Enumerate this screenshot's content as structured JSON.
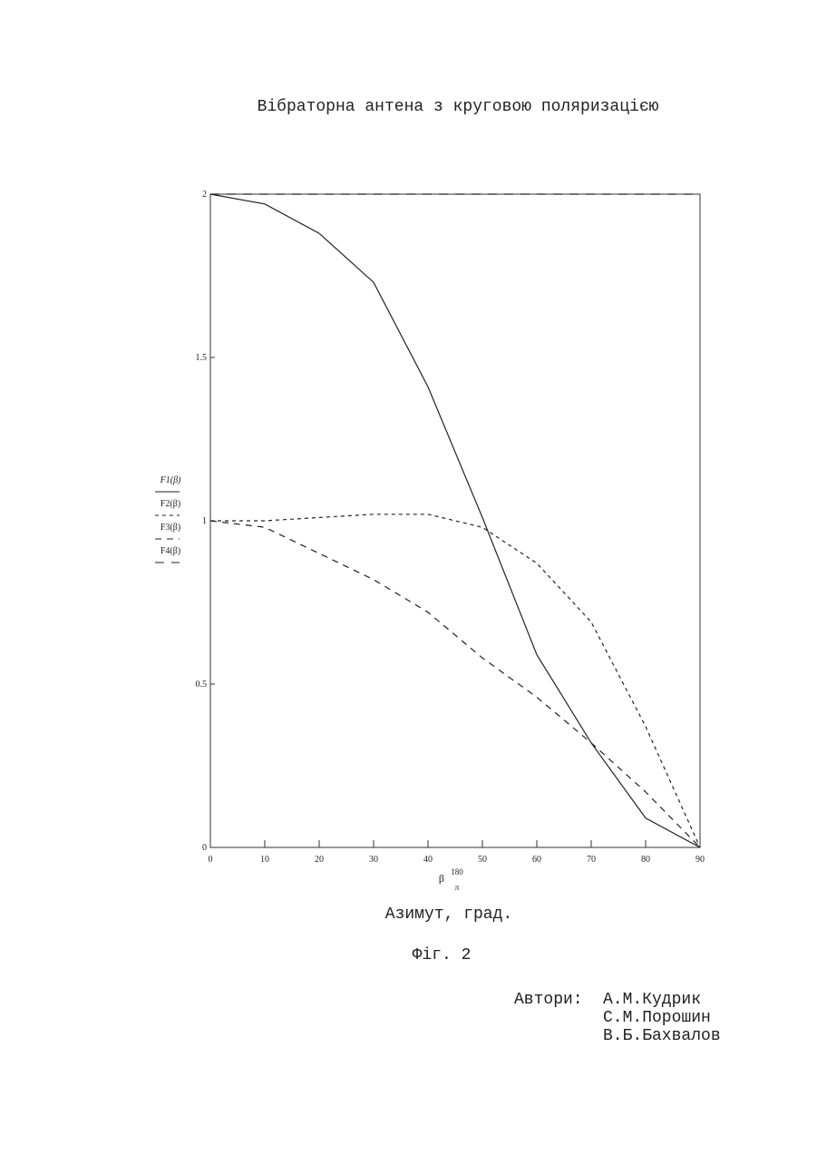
{
  "document": {
    "title": "Вібраторна антена з круговою поляризацією",
    "caption": "Фіг. 2",
    "authors_label": "Автори:",
    "authors": [
      "А.М.Кудрик",
      "С.М.Порошин",
      "В.Б.Бахвалов"
    ]
  },
  "chart_data": {
    "type": "line",
    "xlabel": "Азимут, град.",
    "x_symbol": "β",
    "x_factor_numerator": "180",
    "x_factor_denominator": "π",
    "x": [
      0,
      10,
      20,
      30,
      40,
      50,
      60,
      70,
      80,
      90
    ],
    "series": [
      {
        "name": "F1(β)",
        "color": "#222222",
        "dash": "none",
        "values": [
          2,
          1.97,
          1.88,
          1.73,
          1.41,
          1.01,
          0.59,
          0.32,
          0.09,
          0
        ]
      },
      {
        "name": "F2(β)",
        "color": "#222222",
        "dash": "4 4",
        "values": [
          1,
          1,
          1.01,
          1.02,
          1.02,
          0.98,
          0.87,
          0.69,
          0.37,
          0
        ]
      },
      {
        "name": "F3(β)",
        "color": "#222222",
        "dash": "7 6",
        "values": [
          1,
          0.98,
          0.9,
          0.82,
          0.72,
          0.58,
          0.46,
          0.32,
          0.17,
          0
        ]
      },
      {
        "name": "F4(β)",
        "color": "#222222",
        "dash": "10 8",
        "values": [
          2,
          2,
          2,
          2,
          2,
          2,
          2,
          2,
          2,
          2
        ]
      }
    ],
    "xlim": [
      0,
      90
    ],
    "xticks": [
      0,
      10,
      20,
      30,
      40,
      50,
      60,
      70,
      80,
      90
    ],
    "ylim": [
      0,
      2
    ],
    "yticks": [
      0,
      0.5,
      1,
      1.5,
      2
    ]
  }
}
